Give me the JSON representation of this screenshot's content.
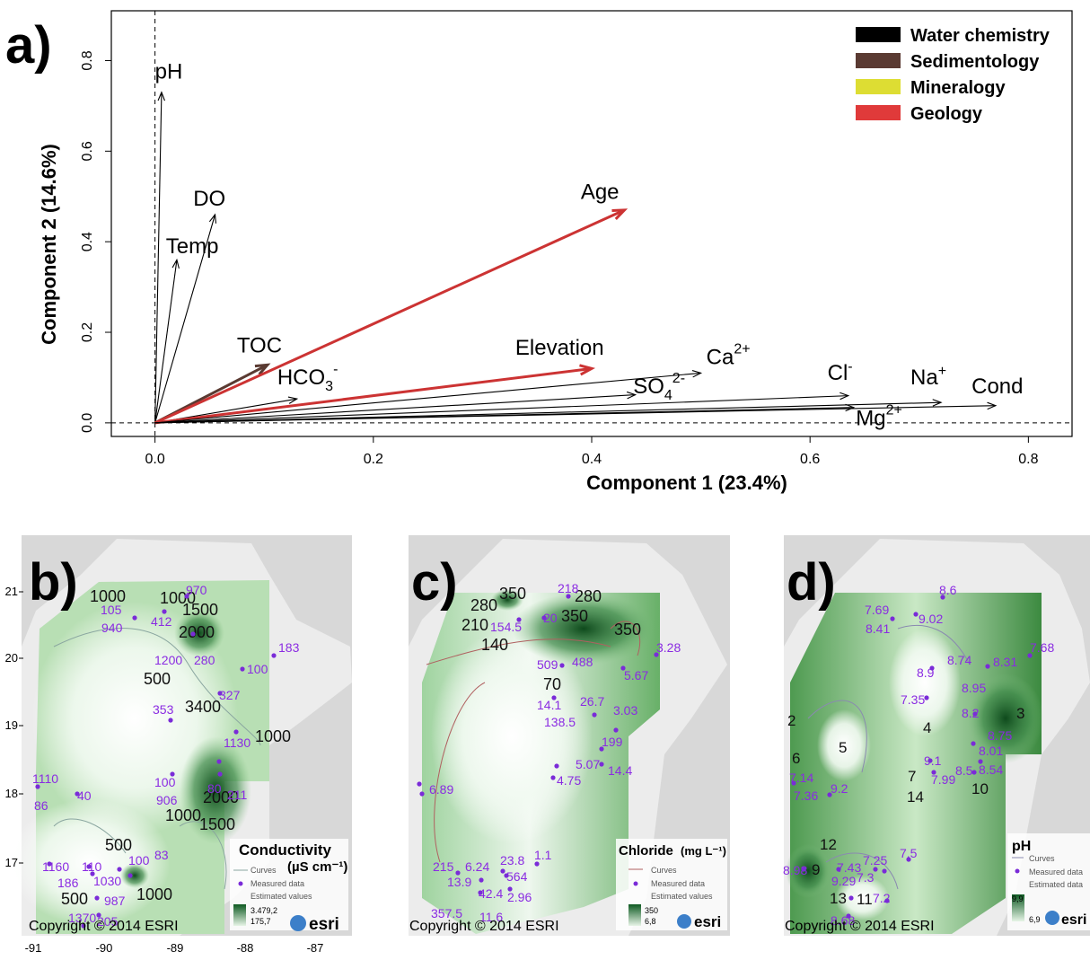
{
  "chart_data": [
    {
      "panel": "a)",
      "type": "biplot",
      "xlabel": "Component 1 (23.4%)",
      "ylabel": "Component 2 (14.6%)",
      "xlim": [
        -0.04,
        0.84
      ],
      "ylim": [
        -0.03,
        0.91
      ],
      "xticks": [
        "0.0",
        "0.2",
        "0.4",
        "0.6",
        "0.8"
      ],
      "yticks": [
        "0.0",
        "0.2",
        "0.4",
        "0.6",
        "0.8"
      ],
      "legend_position": "top-right",
      "legend": [
        {
          "name": "Water chemistry",
          "color": "#000000"
        },
        {
          "name": "Sedimentology",
          "color": "#5a3a32"
        },
        {
          "name": "Mineralogy",
          "color": "#dddd33"
        },
        {
          "name": "Geology",
          "color": "#e03a3a"
        }
      ],
      "vectors": [
        {
          "label": "pH",
          "x": 0.006,
          "y": 0.73,
          "color": "#000000"
        },
        {
          "label": "DO",
          "x": 0.055,
          "y": 0.46,
          "color": "#000000"
        },
        {
          "label": "Temp",
          "x": 0.02,
          "y": 0.36,
          "color": "#000000"
        },
        {
          "label": "TOC",
          "x": 0.103,
          "y": 0.128,
          "color": "#5a3a32"
        },
        {
          "label": "HCO3-",
          "x": 0.13,
          "y": 0.053,
          "color": "#000000"
        },
        {
          "label": "Age",
          "x": 0.43,
          "y": 0.47,
          "color": "#cc3333"
        },
        {
          "label": "Elevation",
          "x": 0.4,
          "y": 0.12,
          "color": "#cc3333"
        },
        {
          "label": "Ca2+",
          "x": 0.5,
          "y": 0.11,
          "color": "#000000"
        },
        {
          "label": "SO42-",
          "x": 0.44,
          "y": 0.062,
          "color": "#000000"
        },
        {
          "label": "Cl-",
          "x": 0.635,
          "y": 0.06,
          "color": "#000000"
        },
        {
          "label": "Na+",
          "x": 0.72,
          "y": 0.045,
          "color": "#000000"
        },
        {
          "label": "Cond",
          "x": 0.77,
          "y": 0.038,
          "color": "#000000"
        },
        {
          "label": "Mg2+",
          "x": 0.64,
          "y": 0.034,
          "color": "#000000"
        }
      ],
      "labels": [
        {
          "text": "pH",
          "x": 0.0,
          "y": 0.76
        },
        {
          "text": "DO",
          "x": 0.035,
          "y": 0.48
        },
        {
          "text": "Temp",
          "x": 0.01,
          "y": 0.375
        },
        {
          "text": "TOC",
          "x": 0.075,
          "y": 0.155
        },
        {
          "text": "Age",
          "x": 0.39,
          "y": 0.495
        },
        {
          "text": "Elevation",
          "x": 0.33,
          "y": 0.15
        },
        {
          "text": "Cl",
          "sup": "-",
          "x": 0.616,
          "y": 0.095
        },
        {
          "text": "Na",
          "sup": "+",
          "x": 0.692,
          "y": 0.085
        },
        {
          "text": "Cond",
          "x": 0.748,
          "y": 0.065
        }
      ],
      "labels_rich": [
        {
          "base": "HCO",
          "sub": "3",
          "sup": "-",
          "x": 0.112,
          "y": 0.085
        },
        {
          "base": "Ca",
          "sup": "2+",
          "x": 0.505,
          "y": 0.13
        },
        {
          "base": "SO",
          "sub": "4",
          "sup": "2-",
          "x": 0.438,
          "y": 0.065
        },
        {
          "base": "Mg",
          "sup": "2+",
          "x": 0.642,
          "y": -0.005
        }
      ]
    },
    {
      "panel": "b)",
      "type": "heatmap",
      "legend_title": "Conductivity",
      "legend_unit": "(µS cm⁻¹)",
      "legend_items": [
        "Curves",
        "Measured data",
        "Estimated values"
      ],
      "range": [
        "3.479,2",
        "175,7"
      ],
      "copyright": "Copyright © 2014 ESRI",
      "logo": "esri",
      "x_ticks": [
        "-91",
        "-90",
        "-89",
        "-88",
        "-87"
      ],
      "y_ticks": [
        "21",
        "20",
        "19",
        "18",
        "17"
      ],
      "contour_labels": [
        "1000",
        "1500",
        "1000",
        "2000",
        "500",
        "3400",
        "1000",
        "2000",
        "1000",
        "1500",
        "500",
        "1000",
        "500"
      ],
      "measured": [
        "970",
        "105",
        "412",
        "940",
        "183",
        "1200",
        "280",
        "100",
        "327",
        "353",
        "1130",
        "100",
        "906",
        "80",
        "211",
        "1110",
        "86",
        "40",
        "1160",
        "110",
        "186",
        "1030",
        "100",
        "83",
        "987",
        "1370",
        "205"
      ]
    },
    {
      "panel": "c)",
      "type": "heatmap",
      "legend_title": "Chloride",
      "legend_unit": "(mg L⁻¹)",
      "legend_items": [
        "Curves",
        "Measured data",
        "Estimated values"
      ],
      "range": [
        "350",
        "6,8"
      ],
      "copyright": "Copyright © 2014 ESRI",
      "logo": "esri",
      "contour_labels": [
        "350",
        "280",
        "280",
        "210",
        "350",
        "350",
        "140",
        "70"
      ],
      "measured": [
        "218",
        "154.5",
        "20",
        "3.28",
        "509",
        "488",
        "5.67",
        "14.1",
        "26.7",
        "138.5",
        "3.03",
        "199",
        "5.07",
        "14.4",
        "4.75",
        "6.89",
        "215",
        "6.24",
        "23.8",
        "1.1",
        "13.9",
        "564",
        "42.4",
        "2.96",
        "357.5",
        "11.6"
      ]
    },
    {
      "panel": "d)",
      "type": "heatmap",
      "legend_title": "pH",
      "legend_items": [
        "Curves",
        "Measured data",
        "Estimated data"
      ],
      "range": [
        "9,9",
        "6,9"
      ],
      "copyright": "Copyright © 2014 ESRI",
      "logo": "esri",
      "contour_labels": [
        "2",
        "6",
        "5",
        "4",
        "3",
        "7",
        "14",
        "10",
        "12",
        "9",
        "13",
        "11"
      ],
      "measured": [
        "8.6",
        "7.69",
        "8.41",
        "9.02",
        "7.68",
        "8.9",
        "8.74",
        "8.31",
        "7.35",
        "8.95",
        "8.2",
        "8.75",
        "8.01",
        "9.1",
        "8.5",
        "8.54",
        "7.99",
        "7.14",
        "7.36",
        "9.2",
        "7.43",
        "7.25",
        "7.5",
        "8.98",
        "9.29",
        "7.3",
        "7.2",
        "8.68"
      ]
    }
  ]
}
